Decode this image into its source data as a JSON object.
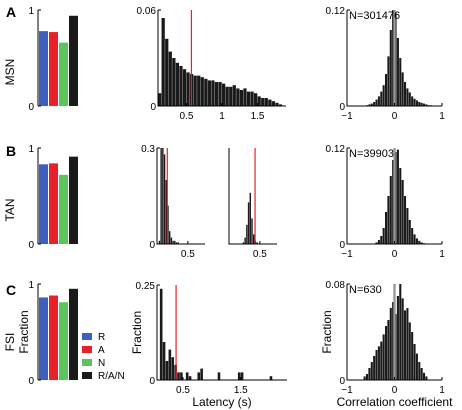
{
  "figure": {
    "panels": [
      {
        "letter": "A",
        "row_label": "MSN"
      },
      {
        "letter": "B",
        "row_label": "TAN"
      },
      {
        "letter": "C",
        "row_label": "FSI"
      }
    ],
    "axis_labels": {
      "fraction": "Fraction",
      "latency": "Latency (s)",
      "correlation": "Correlation coefficient"
    },
    "legend": [
      {
        "label": "R",
        "color": "#3f5fbf"
      },
      {
        "label": "A",
        "color": "#e8202a"
      },
      {
        "label": "N",
        "color": "#5cc45c"
      },
      {
        "label": "R/A/N",
        "color": "#1a1a1a"
      }
    ]
  },
  "chart_data": [
    {
      "id": "A-bar",
      "type": "bar",
      "categories": [
        "R",
        "A",
        "N",
        "R/A/N"
      ],
      "values": [
        0.78,
        0.77,
        0.66,
        0.94
      ],
      "ylim": [
        0,
        1
      ],
      "yticks": [
        "0",
        "1"
      ],
      "colors": [
        "#3f5fbf",
        "#e8202a",
        "#5cc45c",
        "#1a1a1a"
      ]
    },
    {
      "id": "B-bar",
      "type": "bar",
      "categories": [
        "R",
        "A",
        "N",
        "R/A/N"
      ],
      "values": [
        0.83,
        0.84,
        0.72,
        0.91
      ],
      "ylim": [
        0,
        1
      ],
      "yticks": [
        "0",
        "1"
      ],
      "colors": [
        "#3f5fbf",
        "#e8202a",
        "#5cc45c",
        "#1a1a1a"
      ]
    },
    {
      "id": "C-bar",
      "type": "bar",
      "categories": [
        "R",
        "A",
        "N",
        "R/A/N"
      ],
      "values": [
        0.86,
        0.88,
        0.81,
        0.95
      ],
      "ylim": [
        0,
        1
      ],
      "yticks": [
        "0",
        "1"
      ],
      "ylabel": "Fraction",
      "colors": [
        "#3f5fbf",
        "#e8202a",
        "#5cc45c",
        "#1a1a1a"
      ]
    },
    {
      "id": "A-lat",
      "type": "bar",
      "xlim": [
        0.1,
        1.9
      ],
      "ylim": [
        0,
        0.06
      ],
      "bin_width": 0.05,
      "x": [
        0.125,
        0.175,
        0.225,
        0.275,
        0.325,
        0.375,
        0.425,
        0.475,
        0.525,
        0.575,
        0.625,
        0.675,
        0.725,
        0.775,
        0.825,
        0.875,
        0.925,
        0.975,
        1.025,
        1.075,
        1.125,
        1.175,
        1.225,
        1.275,
        1.325,
        1.375,
        1.425,
        1.475,
        1.525,
        1.575,
        1.625,
        1.675,
        1.725,
        1.775,
        1.825
      ],
      "values": [
        0.008,
        0.055,
        0.042,
        0.034,
        0.03,
        0.027,
        0.025,
        0.023,
        0.021,
        0.02,
        0.019,
        0.019,
        0.018,
        0.017,
        0.016,
        0.016,
        0.015,
        0.015,
        0.014,
        0.012,
        0.012,
        0.013,
        0.011,
        0.01,
        0.011,
        0.009,
        0.009,
        0.008,
        0.006,
        0.005,
        0.005,
        0.004,
        0.003,
        0.002,
        0.001
      ],
      "marker": 0.57,
      "xticks": [
        0.5,
        1,
        1.5
      ],
      "xticklabels": [
        "0.5",
        "1",
        "1.5"
      ],
      "yticklabels": [
        "0",
        "0.06"
      ]
    },
    {
      "id": "B-lat1",
      "type": "bar",
      "xlim": [
        0.05,
        0.75
      ],
      "ylim": [
        0,
        0.3
      ],
      "bin_width": 0.025,
      "x": [
        0.0875,
        0.1125,
        0.1375,
        0.1625,
        0.1875,
        0.2125,
        0.2375,
        0.2625,
        0.2875,
        0.3125,
        0.3375,
        0.3625
      ],
      "values": [
        0.01,
        0.3,
        0.3,
        0.28,
        0.2,
        0.12,
        0.04,
        0.02,
        0.01,
        0.01,
        0.005,
        0.005
      ],
      "marker": 0.2,
      "xticks": [
        0.5
      ],
      "xticklabels": [
        "0.5"
      ],
      "yticklabels": [
        "0",
        "0.3"
      ]
    },
    {
      "id": "B-lat2",
      "type": "bar",
      "xlim": [
        0.05,
        0.75
      ],
      "ylim": [
        0,
        0.3
      ],
      "bin_width": 0.025,
      "x": [
        0.2625,
        0.2875,
        0.3125,
        0.3375,
        0.3625,
        0.3875,
        0.4125,
        0.4375,
        0.4625
      ],
      "values": [
        0.005,
        0.02,
        0.06,
        0.13,
        0.16,
        0.08,
        0.03,
        0.01,
        0.005
      ],
      "marker": 0.43,
      "xticks": [
        0.5
      ],
      "xticklabels": [
        "0.5"
      ],
      "yticklabels": []
    },
    {
      "id": "C-lat",
      "type": "bar",
      "xlim": [
        0.05,
        2.3
      ],
      "ylim": [
        0,
        0.25
      ],
      "bin_width": 0.05,
      "x": [
        0.125,
        0.175,
        0.225,
        0.275,
        0.325,
        0.375,
        0.425,
        0.475,
        0.575,
        0.625,
        0.775,
        0.825,
        1.125,
        1.475,
        1.525,
        2.025
      ],
      "values": [
        0.24,
        0.1,
        0.05,
        0.08,
        0.06,
        0.04,
        0.02,
        0.02,
        0.02,
        0.01,
        0.02,
        0.03,
        0.02,
        0.02,
        0.02,
        0.01
      ],
      "marker": 0.38,
      "xticks": [
        0.5,
        1.5
      ],
      "xticklabels": [
        "0.5",
        "1.5"
      ],
      "yticklabels": [
        "0",
        "0.25"
      ],
      "ylabel": "Fraction",
      "xlabel": "Latency (s)"
    },
    {
      "id": "A-corr",
      "type": "bar",
      "xlim": [
        -1,
        1
      ],
      "ylim": [
        0,
        0.12
      ],
      "bin_width": 0.05,
      "n_label": "N=301476",
      "x": [
        -0.575,
        -0.525,
        -0.475,
        -0.425,
        -0.375,
        -0.325,
        -0.275,
        -0.225,
        -0.175,
        -0.125,
        -0.075,
        -0.025,
        0.025,
        0.075,
        0.125,
        0.175,
        0.225,
        0.275,
        0.325,
        0.375,
        0.425,
        0.475,
        0.525,
        0.575,
        0.625,
        0.675,
        0.725,
        0.775
      ],
      "values": [
        0.001,
        0.002,
        0.003,
        0.005,
        0.008,
        0.012,
        0.018,
        0.026,
        0.04,
        0.062,
        0.095,
        0.125,
        0.117,
        0.085,
        0.06,
        0.042,
        0.03,
        0.022,
        0.017,
        0.012,
        0.009,
        0.007,
        0.005,
        0.004,
        0.003,
        0.002,
        0.001,
        0.001
      ],
      "marker": 0,
      "xticks": [
        -1,
        0,
        1
      ],
      "xticklabels": [
        "−1",
        "0",
        "1"
      ],
      "yticklabels": [
        "0",
        "0.12"
      ]
    },
    {
      "id": "B-corr",
      "type": "bar",
      "xlim": [
        -1,
        1
      ],
      "ylim": [
        0,
        0.12
      ],
      "bin_width": 0.05,
      "n_label": "N=39903",
      "x": [
        -0.375,
        -0.325,
        -0.275,
        -0.225,
        -0.175,
        -0.125,
        -0.075,
        -0.025,
        0.025,
        0.075,
        0.125,
        0.175,
        0.225,
        0.275,
        0.325,
        0.375,
        0.425,
        0.475,
        0.525,
        0.575,
        0.625
      ],
      "values": [
        0.002,
        0.005,
        0.01,
        0.02,
        0.04,
        0.06,
        0.085,
        0.105,
        0.115,
        0.118,
        0.095,
        0.08,
        0.06,
        0.045,
        0.03,
        0.02,
        0.012,
        0.007,
        0.004,
        0.002,
        0.001
      ],
      "marker": 0,
      "xticks": [
        -1,
        0,
        1
      ],
      "xticklabels": [
        "−1",
        "0",
        "1"
      ],
      "yticklabels": [
        "0",
        "0.12"
      ]
    },
    {
      "id": "C-corr",
      "type": "bar",
      "xlim": [
        -1,
        1
      ],
      "ylim": [
        0,
        0.08
      ],
      "bin_width": 0.05,
      "n_label": "N=630",
      "x": [
        -0.625,
        -0.575,
        -0.525,
        -0.475,
        -0.425,
        -0.375,
        -0.325,
        -0.275,
        -0.225,
        -0.175,
        -0.125,
        -0.075,
        -0.025,
        0.025,
        0.075,
        0.125,
        0.175,
        0.225,
        0.275,
        0.325,
        0.375,
        0.425,
        0.475,
        0.525,
        0.575,
        0.625,
        0.675
      ],
      "values": [
        0.003,
        0.005,
        0.01,
        0.015,
        0.02,
        0.025,
        0.028,
        0.032,
        0.038,
        0.045,
        0.05,
        0.06,
        0.065,
        0.055,
        0.07,
        0.08,
        0.068,
        0.058,
        0.06,
        0.048,
        0.04,
        0.03,
        0.022,
        0.015,
        0.01,
        0.006,
        0.003
      ],
      "marker": 0,
      "xticks": [
        -1,
        0,
        1
      ],
      "xticklabels": [
        "−1",
        "0",
        "1"
      ],
      "yticklabels": [
        "0",
        "0.08"
      ],
      "ylabel": "Fraction",
      "xlabel": "Correlation coefficient"
    }
  ]
}
